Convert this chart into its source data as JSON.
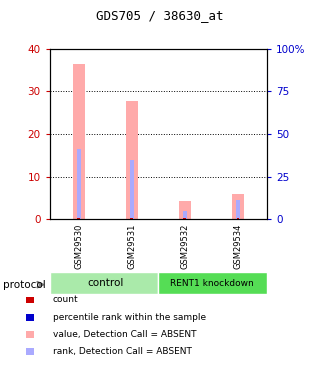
{
  "title": "GDS705 / 38630_at",
  "samples": [
    "GSM29530",
    "GSM29531",
    "GSM29532",
    "GSM29534"
  ],
  "value_absent": [
    36.5,
    27.8,
    4.3,
    5.9
  ],
  "rank_absent": [
    16.5,
    14.0,
    2.0,
    4.5
  ],
  "ylim_left": [
    0,
    40
  ],
  "ylim_right": [
    0,
    100
  ],
  "yticks_left": [
    0,
    10,
    20,
    30,
    40
  ],
  "yticks_right": [
    0,
    25,
    50,
    75,
    100
  ],
  "yticklabels_right": [
    "0",
    "25",
    "50",
    "75",
    "100%"
  ],
  "left_axis_color": "#cc0000",
  "right_axis_color": "#0000cc",
  "absent_value_color": "#ffaaaa",
  "absent_rank_color": "#aaaaff",
  "count_color": "#cc0000",
  "rank_color": "#0000cc",
  "bg_color": "#ffffff",
  "group_bg_control": "#aaeaaa",
  "group_bg_knockdown": "#55dd55",
  "sample_bg": "#cccccc",
  "legend_items": [
    {
      "label": "count",
      "color": "#cc0000"
    },
    {
      "label": "percentile rank within the sample",
      "color": "#0000cc"
    },
    {
      "label": "value, Detection Call = ABSENT",
      "color": "#ffaaaa"
    },
    {
      "label": "rank, Detection Call = ABSENT",
      "color": "#aaaaff"
    }
  ]
}
